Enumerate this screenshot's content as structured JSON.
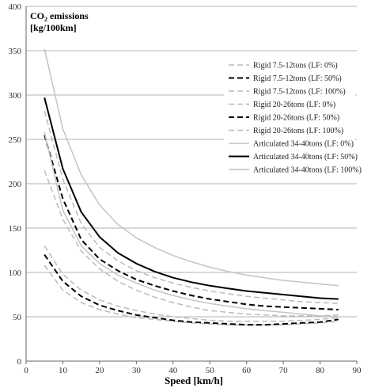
{
  "chart_data": {
    "type": "line",
    "title_line1_main": "CO",
    "title_line1_sub": "2",
    "title_line1_rest": " emissions",
    "title_line2": "[kg/100km]",
    "xlabel": "Speed  [km/h]",
    "xlim": [
      0,
      90
    ],
    "ylim": [
      0,
      400
    ],
    "xticks": [
      0,
      10,
      20,
      30,
      40,
      50,
      60,
      70,
      80,
      90
    ],
    "yticks": [
      0,
      50,
      100,
      150,
      200,
      250,
      300,
      350,
      400
    ],
    "grid": "horizontal",
    "legend_position": "top-right",
    "x": [
      5,
      10,
      15,
      20,
      25,
      30,
      35,
      40,
      45,
      50,
      55,
      60,
      65,
      70,
      75,
      80,
      85
    ],
    "series": [
      {
        "name": "Rigid 7.5-12tons (LF: 0%)",
        "color": "#bbbbbb",
        "dash": "dashed",
        "width": 1.5,
        "values": [
          108,
          80,
          66,
          58,
          53,
          49,
          47,
          45,
          43,
          42,
          41,
          41,
          41,
          41,
          42,
          43,
          45
        ]
      },
      {
        "name": "Rigid 7.5-12tons (LF: 50%)",
        "color": "#000000",
        "dash": "dashed",
        "width": 2,
        "values": [
          120,
          90,
          73,
          63,
          57,
          52,
          49,
          46,
          44,
          43,
          42,
          41,
          41,
          42,
          43,
          44,
          47
        ]
      },
      {
        "name": "Rigid 7.5-12tons (LF: 100%)",
        "color": "#bbbbbb",
        "dash": "dashed",
        "width": 1.5,
        "values": [
          130,
          98,
          80,
          69,
          62,
          57,
          53,
          50,
          48,
          46,
          45,
          45,
          45,
          45,
          46,
          47,
          49
        ]
      },
      {
        "name": "Rigid 20-26tons (LF: 0%)",
        "color": "#bbbbbb",
        "dash": "dashed",
        "width": 1.5,
        "values": [
          215,
          160,
          124,
          104,
          90,
          80,
          72,
          66,
          61,
          57,
          55,
          53,
          52,
          51,
          51,
          51,
          52
        ]
      },
      {
        "name": "Rigid 20-26tons (LF: 50%)",
        "color": "#000000",
        "dash": "dashed",
        "width": 2,
        "values": [
          255,
          183,
          137,
          115,
          102,
          92,
          85,
          79,
          74,
          70,
          67,
          64,
          62,
          61,
          60,
          59,
          58
        ]
      },
      {
        "name": "Rigid 20-26tons (LF: 100%)",
        "color": "#bbbbbb",
        "dash": "dashed",
        "width": 1.5,
        "values": [
          282,
          205,
          155,
          128,
          113,
          102,
          94,
          88,
          83,
          79,
          76,
          73,
          71,
          69,
          67,
          66,
          65
        ]
      },
      {
        "name": "Articulated 34-40tons (LF: 0%)",
        "color": "#c4c4c4",
        "dash": "solid",
        "width": 1.5,
        "values": [
          258,
          170,
          130,
          110,
          97,
          88,
          80,
          74,
          69,
          65,
          62,
          59,
          57,
          55,
          53,
          51,
          50
        ]
      },
      {
        "name": "Articulated 34-40tons (LF: 50%)",
        "color": "#000000",
        "dash": "solid",
        "width": 2,
        "values": [
          297,
          217,
          168,
          140,
          122,
          110,
          101,
          94,
          89,
          85,
          82,
          79,
          77,
          75,
          73,
          71,
          70
        ]
      },
      {
        "name": "Articulated 34-40tons (LF: 100%)",
        "color": "#c4c4c4",
        "dash": "solid",
        "width": 1.5,
        "values": [
          352,
          262,
          210,
          176,
          154,
          139,
          128,
          119,
          112,
          106,
          101,
          97,
          94,
          91,
          89,
          87,
          85
        ]
      }
    ]
  }
}
